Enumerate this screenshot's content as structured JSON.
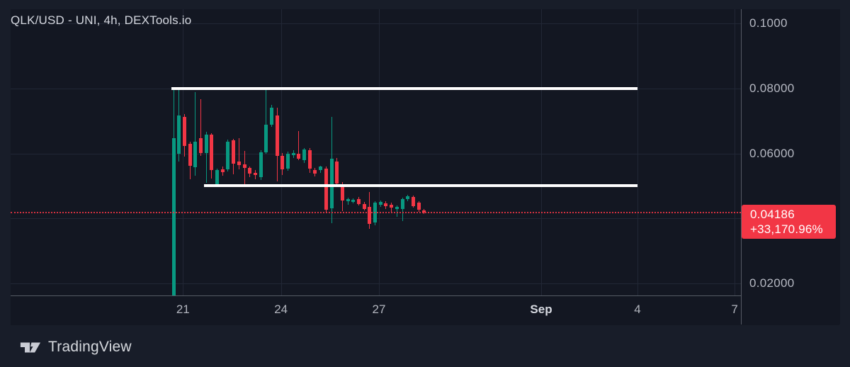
{
  "header": {
    "title": "QLK/USD - UNI, 4h, DEXTools.io"
  },
  "footer": {
    "logo_text": "TradingView",
    "logo_icon": "tradingview-mark"
  },
  "colors": {
    "up": "#089981",
    "down": "#f23645",
    "badge_bg": "#f23645",
    "badge_text": "#ffffff",
    "ray": "#ffffff",
    "price_line": "#f23645",
    "grid": "#212735",
    "pane_bg": "#131722",
    "outer_bg": "#181d29",
    "axis_separator": "#555a64",
    "axis_text": "#b6b9c3",
    "title_text": "#d5d8e0"
  },
  "chart_data": {
    "type": "candlestick",
    "title": "QLK/USD - UNI, 4h, DEXTools.io",
    "symbol": "QLK/USD",
    "venue": "UNI",
    "interval": "4h",
    "source": "DEXTools.io",
    "legend_position": "top-left",
    "grid": "on",
    "y_axis": {
      "side": "right",
      "range": {
        "top": 0.1044,
        "bottom": 0.0163
      },
      "visible_labels": [
        {
          "price": 0.1,
          "label": "0.1000"
        },
        {
          "price": 0.08,
          "label": "0.08000"
        },
        {
          "price": 0.06,
          "label": "0.06000"
        },
        {
          "price": 0.02,
          "label": "0.02000"
        }
      ],
      "gridline_prices": [
        0.1,
        0.08,
        0.06,
        0.04,
        0.02
      ]
    },
    "x_axis": {
      "bars_per_day": 6,
      "ticks": [
        {
          "label": "21",
          "bar": 1.73,
          "bold": false
        },
        {
          "label": "24",
          "bar": 19.73,
          "bold": false
        },
        {
          "label": "27",
          "bar": 37.71,
          "bold": false
        },
        {
          "label": "Sep",
          "bar": 67.49,
          "bold": true
        },
        {
          "label": "4",
          "bar": 85.18,
          "bold": false
        },
        {
          "label": "7",
          "bar": 103.0,
          "bold": false
        }
      ]
    },
    "candles": [
      [
        0.0163,
        0.08,
        0.0163,
        0.0648
      ],
      [
        0.06,
        0.0796,
        0.0575,
        0.0717
      ],
      [
        0.0713,
        0.0721,
        0.059,
        0.0622
      ],
      [
        0.063,
        0.0636,
        0.0521,
        0.0561
      ],
      [
        0.0557,
        0.0789,
        0.0532,
        0.0637
      ],
      [
        0.0648,
        0.0767,
        0.0592,
        0.0601
      ],
      [
        0.0601,
        0.0666,
        0.051,
        0.0659
      ],
      [
        0.0659,
        0.0663,
        0.0522,
        0.0549
      ],
      [
        0.0506,
        0.0554,
        0.0498,
        0.055
      ],
      [
        0.0552,
        0.0561,
        0.0532,
        0.0543
      ],
      [
        0.055,
        0.0642,
        0.0544,
        0.0637
      ],
      [
        0.0641,
        0.0646,
        0.0536,
        0.0568
      ],
      [
        0.0576,
        0.0648,
        0.0551,
        0.0565
      ],
      [
        0.0567,
        0.0609,
        0.0496,
        0.0556
      ],
      [
        0.0556,
        0.0561,
        0.0527,
        0.0539
      ],
      [
        0.0541,
        0.0549,
        0.0521,
        0.0534
      ],
      [
        0.0528,
        0.0611,
        0.0519,
        0.0604
      ],
      [
        0.0604,
        0.0805,
        0.0598,
        0.0688
      ],
      [
        0.0688,
        0.0749,
        0.0681,
        0.0742
      ],
      [
        0.0716,
        0.0741,
        0.0514,
        0.0593
      ],
      [
        0.0593,
        0.0601,
        0.0534,
        0.055
      ],
      [
        0.0554,
        0.0606,
        0.0546,
        0.06
      ],
      [
        0.0594,
        0.0611,
        0.0585,
        0.0602
      ],
      [
        0.0599,
        0.0669,
        0.0579,
        0.0583
      ],
      [
        0.058,
        0.0616,
        0.0571,
        0.0612
      ],
      [
        0.061,
        0.0616,
        0.054,
        0.0553
      ],
      [
        0.055,
        0.0556,
        0.0529,
        0.0539
      ],
      [
        0.0549,
        0.0563,
        0.0541,
        0.0559
      ],
      [
        0.0554,
        0.0561,
        0.0419,
        0.0427
      ],
      [
        0.0432,
        0.0713,
        0.0386,
        0.0584
      ],
      [
        0.0575,
        0.0586,
        0.05,
        0.0507
      ],
      [
        0.0503,
        0.0511,
        0.0423,
        0.0456
      ],
      [
        0.0453,
        0.0463,
        0.0441,
        0.046
      ],
      [
        0.0451,
        0.0462,
        0.0446,
        0.0458
      ],
      [
        0.046,
        0.0466,
        0.0441,
        0.0445
      ],
      [
        0.0445,
        0.0451,
        0.0424,
        0.043
      ],
      [
        0.0435,
        0.0481,
        0.0368,
        0.0383
      ],
      [
        0.0387,
        0.0453,
        0.0379,
        0.0449
      ],
      [
        0.0443,
        0.0456,
        0.0436,
        0.0452
      ],
      [
        0.0447,
        0.0453,
        0.0429,
        0.0437
      ],
      [
        0.0443,
        0.0449,
        0.0418,
        0.0433
      ],
      [
        0.0428,
        0.0439,
        0.0404,
        0.0435
      ],
      [
        0.043,
        0.0463,
        0.0392,
        0.0459
      ],
      [
        0.0459,
        0.0472,
        0.0454,
        0.0469
      ],
      [
        0.0466,
        0.0471,
        0.0434,
        0.0437
      ],
      [
        0.0448,
        0.0453,
        0.0421,
        0.0426
      ],
      [
        0.0424,
        0.0429,
        0.0413,
        0.0419
      ]
    ],
    "horizontal_rays": [
      {
        "price": 0.08,
        "start_bar": -0.4,
        "end_bar": 85.18
      },
      {
        "price": 0.0501,
        "start_bar": 5.6,
        "end_bar": 85.18
      }
    ],
    "price_line": {
      "price": 0.04186,
      "label": "0.04186",
      "change": "+33,170.96%"
    }
  }
}
